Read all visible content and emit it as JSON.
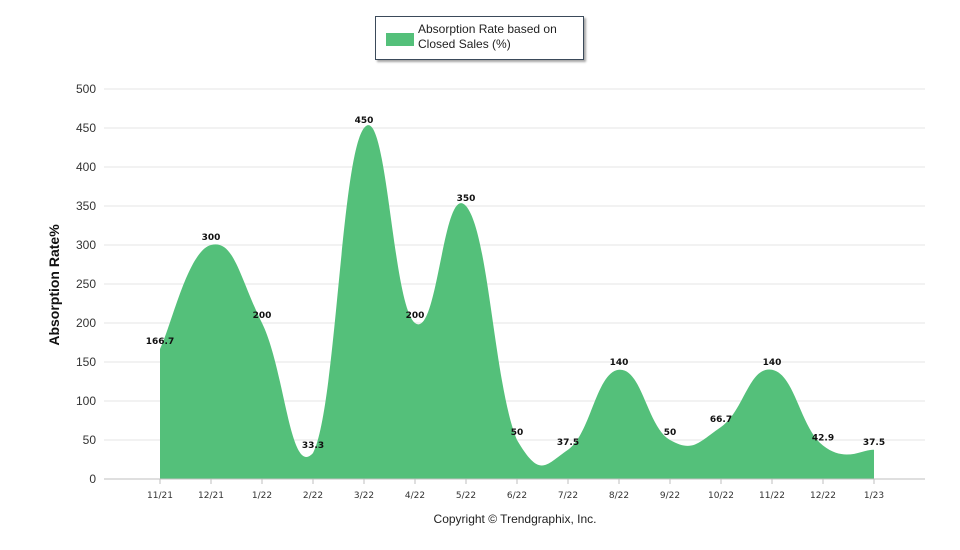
{
  "legend": {
    "label": "Absorption Rate based on Closed Sales (%)"
  },
  "footer": {
    "copyright": "Copyright © Trendgraphix, Inc."
  },
  "colors": {
    "area": "#54c07a",
    "grid": "#e6e6e6",
    "axis": "#bfbfbf"
  },
  "chart_data": {
    "type": "area",
    "ylabel": "Absorption Rate%",
    "xlabel": "",
    "ylim": [
      0,
      500
    ],
    "yticks": [
      0,
      50,
      100,
      150,
      200,
      250,
      300,
      350,
      400,
      450,
      500
    ],
    "grid": true,
    "legend_position": "top-center",
    "categories": [
      "11/21",
      "12/21",
      "1/22",
      "2/22",
      "3/22",
      "4/22",
      "5/22",
      "6/22",
      "7/22",
      "8/22",
      "9/22",
      "10/22",
      "11/22",
      "12/22",
      "1/23"
    ],
    "series": [
      {
        "name": "Absorption Rate based on Closed Sales (%)",
        "values": [
          166.7,
          300,
          200,
          33.3,
          450,
          200,
          350,
          50,
          37.5,
          140,
          50,
          66.7,
          140,
          42.9,
          37.5
        ],
        "labels": [
          "166.7",
          "300",
          "200",
          "33.3",
          "450",
          "200",
          "350",
          "50",
          "37.5",
          "140",
          "50",
          "66.7",
          "140",
          "42.9",
          "37.5"
        ]
      }
    ]
  }
}
